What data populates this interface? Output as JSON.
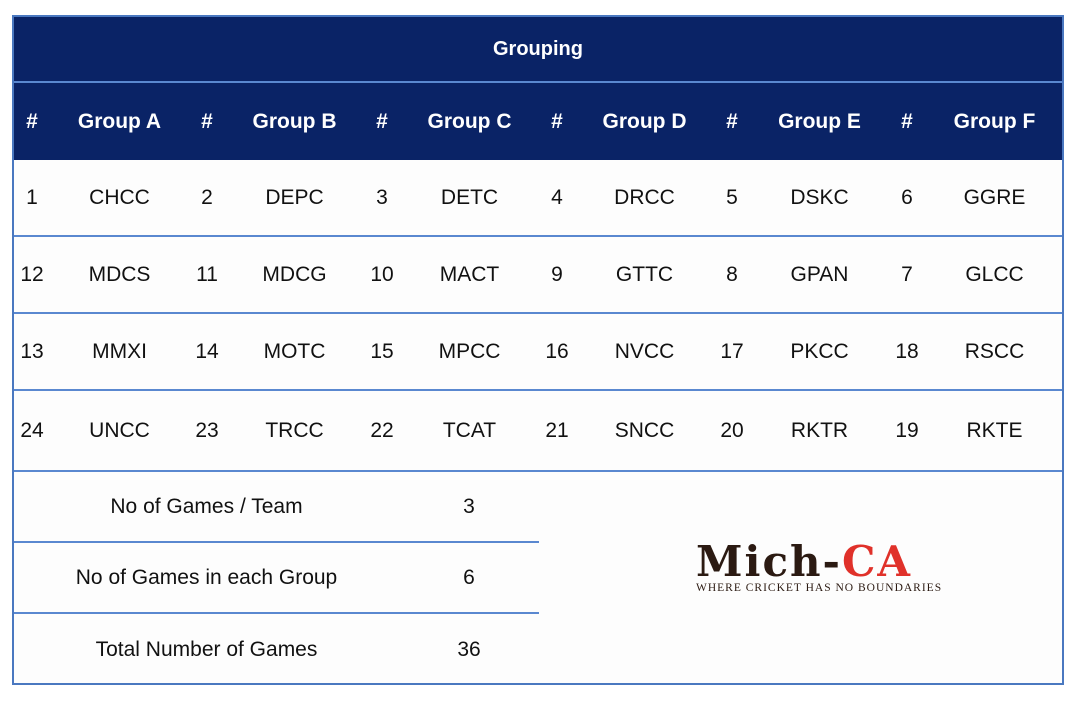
{
  "title": "Grouping",
  "headers": [
    "#",
    "Group A",
    "#",
    "Group B",
    "#",
    "Group C",
    "#",
    "Group D",
    "#",
    "Group E",
    "#",
    "Group F"
  ],
  "rows": [
    [
      "1",
      "CHCC",
      "2",
      "DEPC",
      "3",
      "DETC",
      "4",
      "DRCC",
      "5",
      "DSKC",
      "6",
      "GGRE"
    ],
    [
      "12",
      "MDCS",
      "11",
      "MDCG",
      "10",
      "MACT",
      "9",
      "GTTC",
      "8",
      "GPAN",
      "7",
      "GLCC"
    ],
    [
      "13",
      "MMXI",
      "14",
      "MOTC",
      "15",
      "MPCC",
      "16",
      "NVCC",
      "17",
      "PKCC",
      "18",
      "RSCC"
    ],
    [
      "24",
      "UNCC",
      "23",
      "TRCC",
      "22",
      "TCAT",
      "21",
      "SNCC",
      "20",
      "RKTR",
      "19",
      "RKTE"
    ]
  ],
  "stats": [
    {
      "label": "No of Games / Team",
      "value": "3"
    },
    {
      "label": "No of Games in each Group",
      "value": "6"
    },
    {
      "label": "Total Number of Games",
      "value": "36"
    }
  ],
  "logo": {
    "name_part1": "Mich-",
    "name_part2": "CA",
    "tagline": "WHERE CRICKET HAS NO BOUNDARIES"
  },
  "colors": {
    "header_bg": "#0a2366",
    "border": "#5a88d0",
    "logo_red": "#e0312a"
  }
}
